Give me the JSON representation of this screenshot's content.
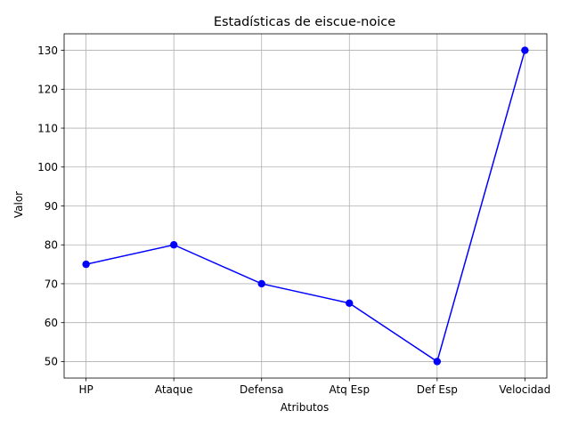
{
  "chart_data": {
    "type": "line",
    "title": "Estadísticas de eiscue-noice",
    "xlabel": "Atributos",
    "ylabel": "Valor",
    "categories": [
      "HP",
      "Ataque",
      "Defensa",
      "Atq Esp",
      "Def Esp",
      "Velocidad"
    ],
    "series": [
      {
        "values": [
          75,
          80,
          70,
          65,
          50,
          130
        ]
      }
    ],
    "ylim": [
      45.75,
      134.25
    ],
    "yticks": [
      50,
      60,
      70,
      80,
      90,
      100,
      110,
      120,
      130
    ],
    "grid": true,
    "marker": "circle",
    "line_color": "#0000ff",
    "grid_color": "#b0b0b0"
  }
}
